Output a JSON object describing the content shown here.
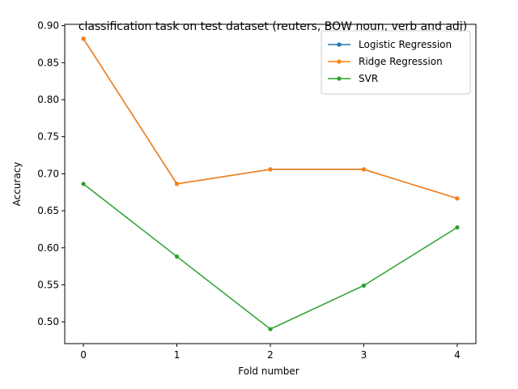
{
  "chart_data": {
    "type": "line",
    "title": "classification task on test dataset (reuters, BOW noun, verb and adj)",
    "xlabel": "Fold number",
    "ylabel": "Accuracy",
    "x": [
      0,
      1,
      2,
      3,
      4
    ],
    "x_ticks": [
      "0",
      "1",
      "2",
      "3",
      "4"
    ],
    "y_ticks": [
      "0.50",
      "0.55",
      "0.60",
      "0.65",
      "0.70",
      "0.75",
      "0.80",
      "0.85",
      "0.90"
    ],
    "xlim": [
      -0.2,
      4.2
    ],
    "ylim": [
      0.4706,
      0.9018
    ],
    "grid": false,
    "legend_position": "top-right",
    "series": [
      {
        "name": "Logistic Regression",
        "color": "#1f77b4",
        "marker": "dot",
        "values": [
          0.8824,
          0.6863,
          0.7059,
          0.7059,
          0.6667
        ]
      },
      {
        "name": "Ridge Regression",
        "color": "#ff7f0e",
        "marker": "dot",
        "values": [
          0.8824,
          0.6863,
          0.7059,
          0.7059,
          0.6667
        ]
      },
      {
        "name": "SVR",
        "color": "#2ca02c",
        "marker": "dot",
        "values": [
          0.6863,
          0.5882,
          0.4902,
          0.549,
          0.6275
        ]
      }
    ]
  }
}
